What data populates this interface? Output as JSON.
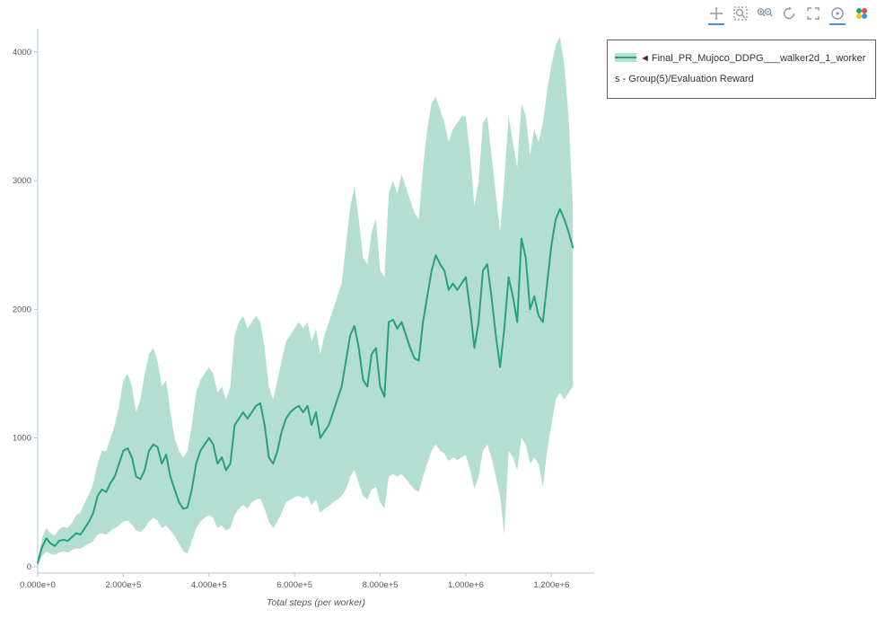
{
  "modebar": {
    "icons": [
      {
        "name": "pan-icon",
        "active": true
      },
      {
        "name": "box-zoom-icon",
        "active": false
      },
      {
        "name": "zoom-in-out-icon",
        "active": false
      },
      {
        "name": "autoscale-icon",
        "active": false
      },
      {
        "name": "reset-axes-icon",
        "active": false
      },
      {
        "name": "hover-closest-icon",
        "active": true
      },
      {
        "name": "plotly-logo-icon",
        "active": false
      }
    ]
  },
  "legend": {
    "marker": "◄",
    "label": "Final_PR_Mujoco_DDPG___walker2d_1_workers - Group(5)/Evaluation Reward"
  },
  "colors": {
    "line": "#26a17b",
    "band": "#26a17b",
    "band_opacity": 0.35,
    "axis": "#a9c6de",
    "tick_label": "#555555",
    "axis_title": "#555555",
    "modebar_icon": "#8898aa",
    "modebar_active": "#4a90d9"
  },
  "chart_data": {
    "type": "line",
    "title": "",
    "xlabel": "Total steps (per worker)",
    "ylabel": "",
    "grid": false,
    "legend_position": "top-right-outside",
    "xlim": [
      0,
      1300000
    ],
    "ylim": [
      -50,
      4180
    ],
    "x_ticks": [
      {
        "value": 0,
        "label": "0.000e+0"
      },
      {
        "value": 200000,
        "label": "2.000e+5"
      },
      {
        "value": 400000,
        "label": "4.000e+5"
      },
      {
        "value": 600000,
        "label": "6.000e+5"
      },
      {
        "value": 800000,
        "label": "8.000e+5"
      },
      {
        "value": 1000000,
        "label": "1.000e+6"
      },
      {
        "value": 1200000,
        "label": "1.200e+6"
      }
    ],
    "y_ticks": [
      {
        "value": 0,
        "label": "0"
      },
      {
        "value": 1000,
        "label": "1000"
      },
      {
        "value": 2000,
        "label": "2000"
      },
      {
        "value": 3000,
        "label": "3000"
      },
      {
        "value": 4000,
        "label": "4000"
      }
    ],
    "series": [
      {
        "name": "Final_PR_Mujoco_DDPG___walker2d_1_workers - Group(5)/Evaluation Reward",
        "x": [
          0,
          10000,
          20000,
          30000,
          40000,
          50000,
          60000,
          70000,
          80000,
          90000,
          100000,
          110000,
          120000,
          130000,
          140000,
          150000,
          160000,
          170000,
          180000,
          190000,
          200000,
          210000,
          220000,
          230000,
          240000,
          250000,
          260000,
          270000,
          280000,
          290000,
          300000,
          310000,
          320000,
          330000,
          340000,
          350000,
          360000,
          370000,
          380000,
          390000,
          400000,
          410000,
          420000,
          430000,
          440000,
          450000,
          460000,
          470000,
          480000,
          490000,
          500000,
          510000,
          520000,
          530000,
          540000,
          550000,
          560000,
          570000,
          580000,
          590000,
          600000,
          610000,
          620000,
          630000,
          640000,
          650000,
          660000,
          670000,
          680000,
          690000,
          700000,
          710000,
          720000,
          730000,
          740000,
          750000,
          760000,
          770000,
          780000,
          790000,
          800000,
          810000,
          820000,
          830000,
          840000,
          850000,
          860000,
          870000,
          880000,
          890000,
          900000,
          910000,
          920000,
          930000,
          940000,
          950000,
          960000,
          970000,
          980000,
          990000,
          1000000,
          1010000,
          1020000,
          1030000,
          1040000,
          1050000,
          1060000,
          1070000,
          1080000,
          1090000,
          1100000,
          1110000,
          1120000,
          1130000,
          1140000,
          1150000,
          1160000,
          1170000,
          1180000,
          1190000,
          1200000,
          1210000,
          1220000,
          1230000,
          1240000,
          1250000
        ],
        "mean": [
          30,
          150,
          220,
          180,
          160,
          200,
          210,
          200,
          230,
          260,
          250,
          300,
          350,
          420,
          550,
          600,
          580,
          650,
          700,
          800,
          900,
          920,
          850,
          700,
          680,
          750,
          900,
          950,
          930,
          800,
          870,
          700,
          600,
          500,
          450,
          460,
          600,
          800,
          900,
          950,
          1000,
          950,
          800,
          850,
          750,
          800,
          1100,
          1150,
          1200,
          1150,
          1200,
          1250,
          1270,
          1100,
          850,
          800,
          900,
          1050,
          1150,
          1200,
          1230,
          1250,
          1200,
          1250,
          1100,
          1200,
          1000,
          1050,
          1100,
          1200,
          1300,
          1400,
          1600,
          1800,
          1870,
          1700,
          1450,
          1400,
          1650,
          1700,
          1400,
          1320,
          1900,
          1920,
          1850,
          1900,
          1800,
          1700,
          1620,
          1600,
          1900,
          2100,
          2300,
          2420,
          2350,
          2300,
          2150,
          2200,
          2150,
          2200,
          2250,
          2000,
          1700,
          1900,
          2300,
          2350,
          2100,
          1800,
          1550,
          1850,
          2250,
          2100,
          1900,
          2550,
          2400,
          2000,
          2100,
          1950,
          1900,
          2200,
          2500,
          2700,
          2780,
          2700,
          2600,
          2480
        ],
        "lower": [
          0,
          80,
          120,
          100,
          90,
          110,
          120,
          110,
          130,
          140,
          140,
          160,
          180,
          200,
          250,
          260,
          250,
          280,
          300,
          320,
          350,
          360,
          330,
          280,
          270,
          300,
          350,
          380,
          360,
          300,
          320,
          280,
          240,
          180,
          120,
          100,
          200,
          300,
          350,
          380,
          400,
          380,
          300,
          320,
          280,
          300,
          400,
          450,
          480,
          450,
          500,
          520,
          530,
          450,
          350,
          300,
          350,
          420,
          500,
          520,
          540,
          550,
          530,
          550,
          480,
          520,
          420,
          450,
          470,
          500,
          520,
          550,
          600,
          700,
          750,
          650,
          550,
          520,
          600,
          620,
          500,
          450,
          700,
          720,
          700,
          720,
          680,
          640,
          600,
          580,
          700,
          800,
          900,
          950,
          900,
          880,
          820,
          850,
          830,
          850,
          870,
          750,
          600,
          700,
          900,
          950,
          850,
          700,
          550,
          250,
          900,
          850,
          750,
          1000,
          950,
          800,
          850,
          800,
          620,
          900,
          1100,
          1300,
          1350,
          1300,
          1350,
          1400
        ],
        "upper": [
          60,
          220,
          300,
          260,
          240,
          290,
          310,
          300,
          340,
          400,
          420,
          500,
          560,
          650,
          800,
          900,
          900,
          1000,
          1100,
          1250,
          1450,
          1500,
          1400,
          1200,
          1300,
          1500,
          1650,
          1700,
          1600,
          1400,
          1450,
          1200,
          1000,
          900,
          850,
          900,
          1100,
          1350,
          1450,
          1500,
          1550,
          1500,
          1350,
          1400,
          1300,
          1400,
          1800,
          1900,
          1950,
          1850,
          1900,
          1950,
          1900,
          1700,
          1400,
          1300,
          1450,
          1600,
          1750,
          1800,
          1850,
          1900,
          1850,
          1900,
          1750,
          1850,
          1650,
          1800,
          1900,
          2000,
          2100,
          2200,
          2500,
          2800,
          2950,
          2700,
          2400,
          2350,
          2600,
          2700,
          2300,
          2250,
          2900,
          3000,
          2900,
          3050,
          2950,
          2850,
          2750,
          2700,
          3100,
          3400,
          3600,
          3650,
          3550,
          3450,
          3300,
          3400,
          3450,
          3500,
          3500,
          3200,
          2800,
          3000,
          3450,
          3500,
          3200,
          2900,
          2600,
          3000,
          3500,
          3300,
          3100,
          3600,
          3500,
          3200,
          3400,
          3300,
          3450,
          3700,
          3900,
          4050,
          4120,
          3900,
          3500,
          2800
        ]
      }
    ]
  }
}
